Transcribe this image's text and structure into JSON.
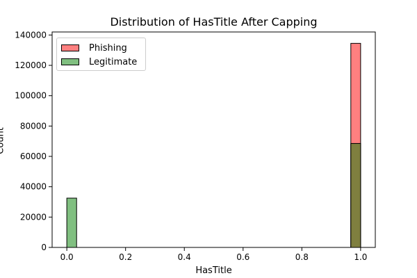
{
  "chart_data": {
    "type": "bar",
    "title": "Distribution of HasTitle After Capping",
    "xlabel": "HasTitle",
    "ylabel": "Count",
    "xlim": [
      -0.05,
      1.05
    ],
    "ylim": [
      0,
      142000
    ],
    "xticks": [
      "0.0",
      "0.2",
      "0.4",
      "0.6",
      "0.8",
      "1.0"
    ],
    "yticks": [
      "0",
      "20000",
      "40000",
      "60000",
      "80000",
      "100000",
      "120000",
      "140000"
    ],
    "bins": 30,
    "bin_range": [
      0,
      1
    ],
    "grid": false,
    "legend_position": "top-left",
    "series": [
      {
        "name": "Phishing",
        "color": "#ff8080",
        "bars": [
          {
            "x": 0.0,
            "count": 0
          },
          {
            "x": 0.9667,
            "count": 134500
          }
        ]
      },
      {
        "name": "Legitimate",
        "color": "#80bf80",
        "bars": [
          {
            "x": 0.0,
            "count": 32500
          },
          {
            "x": 0.9667,
            "count": 68500
          }
        ]
      }
    ],
    "overlap_color": "#7f7f3f"
  }
}
